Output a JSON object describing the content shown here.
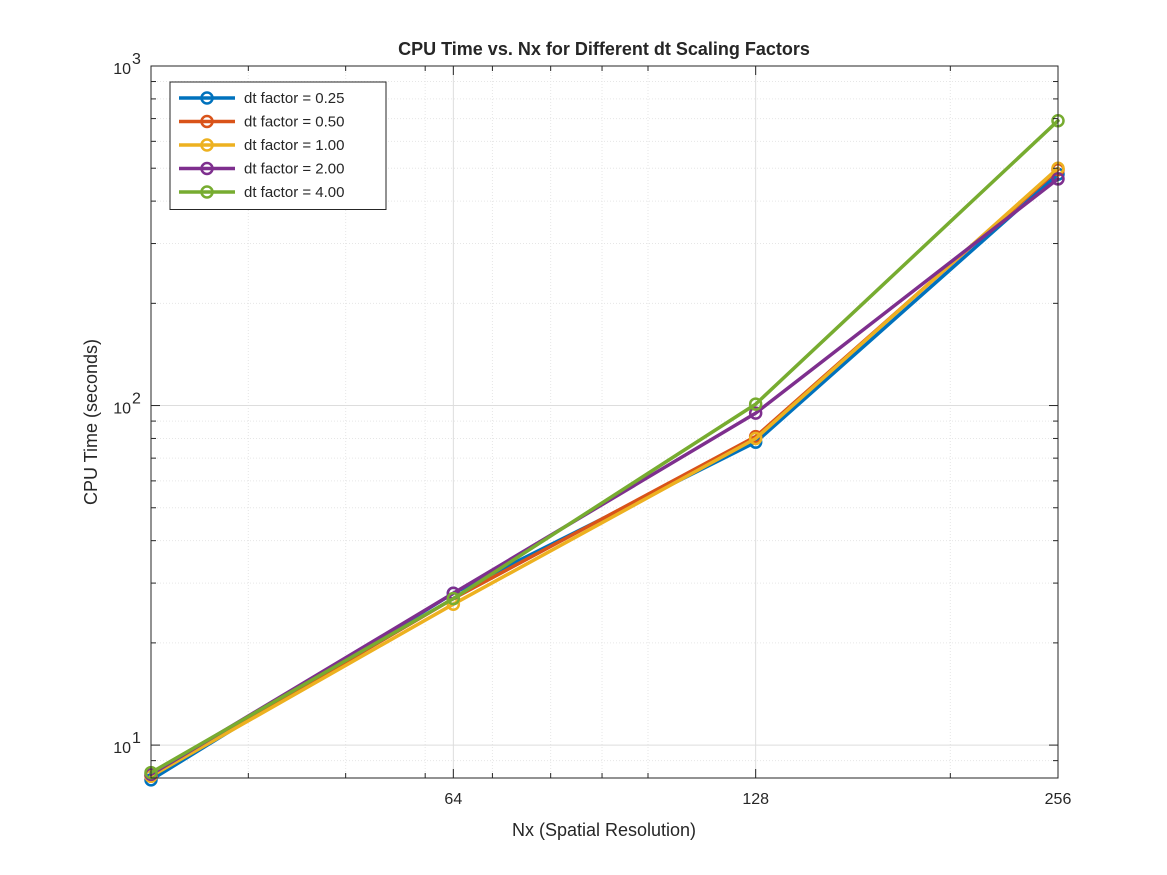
{
  "chart_data": {
    "type": "line",
    "title": "CPU Time vs. Nx for Different dt Scaling Factors",
    "xlabel": "Nx (Spatial Resolution)",
    "ylabel": "CPU Time (seconds)",
    "x_scale": "log",
    "y_scale": "log",
    "xlim": [
      32,
      256
    ],
    "ylim": [
      8,
      1000
    ],
    "x": [
      32,
      64,
      128,
      256
    ],
    "x_ticks": [
      {
        "value": 64,
        "label": "64"
      },
      {
        "value": 128,
        "label": "128"
      },
      {
        "value": 256,
        "label": "256"
      }
    ],
    "y_ticks": [
      {
        "value": 10,
        "base": "10",
        "exp": "1"
      },
      {
        "value": 100,
        "base": "10",
        "exp": "2"
      },
      {
        "value": 1000,
        "base": "10",
        "exp": "3"
      }
    ],
    "grid": true,
    "legend_position": "top-left",
    "marker": "circle",
    "series": [
      {
        "name": "dt factor = 0.25",
        "color": "#0072BD",
        "values": [
          7.9,
          28,
          78,
          480
        ]
      },
      {
        "name": "dt factor = 0.50",
        "color": "#D95319",
        "values": [
          8.1,
          27,
          81,
          495
        ]
      },
      {
        "name": "dt factor = 1.00",
        "color": "#EDB120",
        "values": [
          8.1,
          26,
          80,
          500
        ]
      },
      {
        "name": "dt factor = 2.00",
        "color": "#7E2F8E",
        "values": [
          8.2,
          28,
          95,
          465
        ]
      },
      {
        "name": "dt factor = 4.00",
        "color": "#77AC30",
        "values": [
          8.3,
          27,
          101,
          690
        ]
      }
    ]
  }
}
